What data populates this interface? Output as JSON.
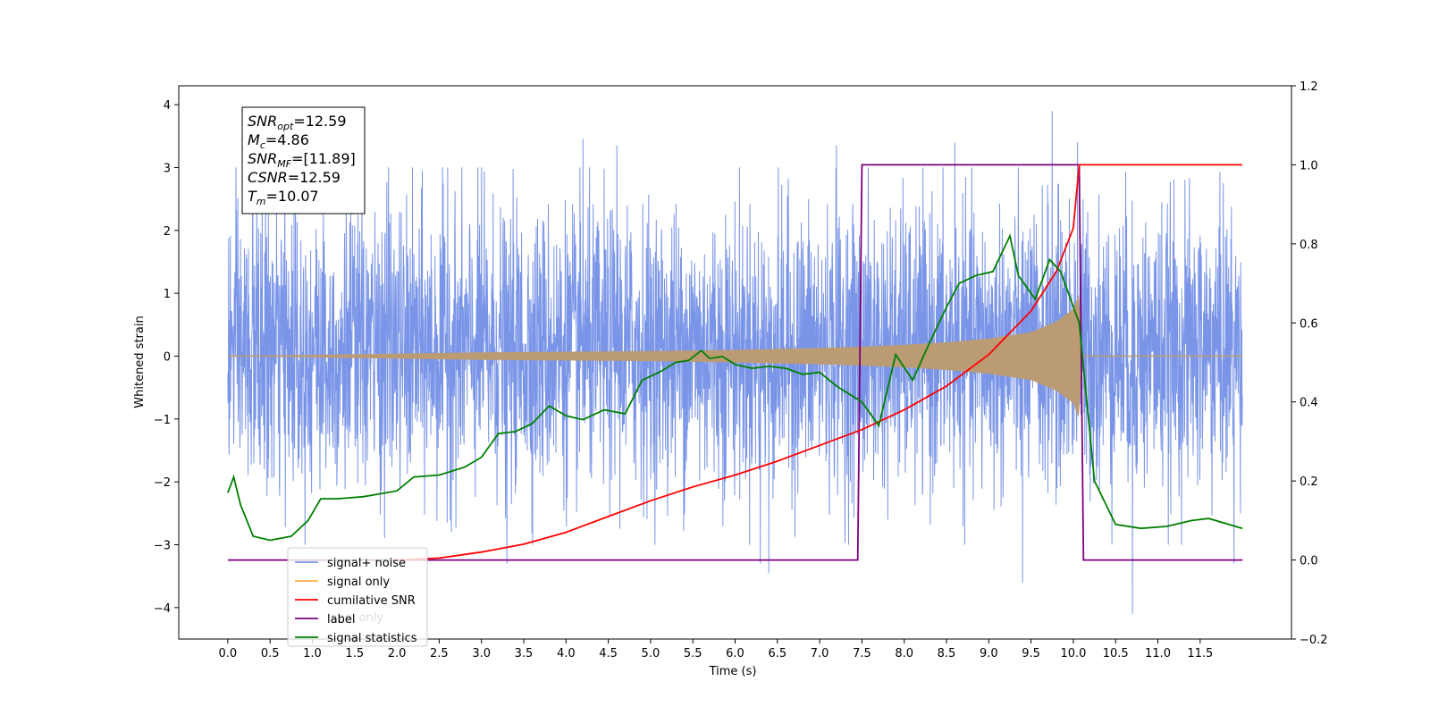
{
  "chart_data": {
    "type": "line",
    "xlabel": "Time (s)",
    "ylabel_left": "Whitened strain",
    "ylabel_right": "",
    "xlim": [
      -0.58,
      12.58
    ],
    "ylim_left": [
      -4.5,
      4.3
    ],
    "ylim_right": [
      -0.2,
      1.2
    ],
    "x_ticks": [
      "0.0",
      "0.5",
      "1.0",
      "1.5",
      "2.0",
      "2.5",
      "3.0",
      "3.5",
      "4.0",
      "4.5",
      "5.0",
      "5.5",
      "6.0",
      "6.5",
      "7.0",
      "7.5",
      "8.0",
      "8.5",
      "9.0",
      "9.5",
      "10.0",
      "10.5",
      "11.0",
      "11.5"
    ],
    "y_ticks_left": [
      "4",
      "3",
      "2",
      "1",
      "0",
      "−1",
      "−2",
      "−3",
      "−4"
    ],
    "y_ticks_right": [
      "1.2",
      "1.0",
      "0.8",
      "0.6",
      "0.4",
      "0.2",
      "0.0",
      "−0.2"
    ],
    "grid": false,
    "legend_position": "lower-left",
    "colors": {
      "signal_noise": "#7a95e8",
      "signal_only": "#ffb347",
      "signal_overlap": "#bb9b73",
      "cumulative_snr": "#ff0000",
      "label": "#7b007b",
      "signal_statistics": "#008000"
    },
    "series": [
      {
        "name": "signal+ noise",
        "axis": "left",
        "envelope_note": "dense noise trace, x 0–12 s",
        "bulk_range": [
          -1.9,
          2.1
        ],
        "x": [
          0.8,
          1.9,
          2.6,
          3.0,
          3.3,
          4.2,
          4.6,
          6.3,
          6.4,
          7.2,
          8.6,
          9.4,
          9.75,
          10.05,
          10.7,
          11.9
        ],
        "y": [
          2.9,
          3.0,
          3.0,
          3.0,
          -3.3,
          3.45,
          3.35,
          -3.3,
          -3.45,
          3.35,
          3.4,
          -3.6,
          3.9,
          3.4,
          -4.1,
          -3.3
        ]
      },
      {
        "name": "signal only",
        "axis": "left",
        "x": [
          0.0,
          1.0,
          2.0,
          3.0,
          4.0,
          5.0,
          6.0,
          7.0,
          7.5,
          8.0,
          8.5,
          9.0,
          9.5,
          9.8,
          10.0,
          10.07,
          10.1,
          12.0
        ],
        "y": [
          0.0,
          0.02,
          0.04,
          0.06,
          0.07,
          0.08,
          0.1,
          0.13,
          0.15,
          0.18,
          0.22,
          0.28,
          0.38,
          0.55,
          0.75,
          1.0,
          0.0,
          0.0
        ]
      },
      {
        "name": "cumilative SNR",
        "axis": "right",
        "x": [
          2.0,
          2.5,
          3.0,
          3.5,
          4.0,
          4.5,
          5.0,
          5.5,
          6.0,
          6.5,
          7.0,
          7.5,
          8.0,
          8.5,
          9.0,
          9.5,
          9.8,
          10.0,
          10.07,
          11.0,
          12.0
        ],
        "y": [
          0.0,
          0.005,
          0.02,
          0.04,
          0.07,
          0.11,
          0.15,
          0.185,
          0.215,
          0.25,
          0.29,
          0.33,
          0.38,
          0.44,
          0.52,
          0.63,
          0.73,
          0.84,
          1.0,
          1.0,
          1.0
        ]
      },
      {
        "name": "label",
        "axis": "right",
        "x": [
          0.0,
          7.45,
          7.5,
          10.07,
          10.12,
          12.0
        ],
        "y": [
          0.0,
          0.0,
          1.0,
          1.0,
          0.0,
          0.0
        ]
      },
      {
        "name": "signal statistics",
        "axis": "right",
        "x": [
          0.0,
          0.07,
          0.15,
          0.3,
          0.5,
          0.75,
          0.95,
          1.1,
          1.3,
          1.6,
          2.0,
          2.2,
          2.5,
          2.8,
          3.0,
          3.2,
          3.4,
          3.6,
          3.8,
          4.0,
          4.2,
          4.45,
          4.7,
          4.9,
          5.1,
          5.3,
          5.45,
          5.6,
          5.7,
          5.85,
          6.0,
          6.2,
          6.4,
          6.6,
          6.8,
          7.0,
          7.2,
          7.5,
          7.7,
          7.9,
          8.1,
          8.3,
          8.5,
          8.65,
          8.85,
          9.05,
          9.25,
          9.35,
          9.55,
          9.72,
          9.85,
          10.07,
          10.25,
          10.5,
          10.8,
          11.1,
          11.4,
          11.6,
          12.0
        ],
        "y": [
          0.17,
          0.21,
          0.14,
          0.06,
          0.05,
          0.06,
          0.1,
          0.155,
          0.155,
          0.16,
          0.175,
          0.21,
          0.215,
          0.235,
          0.26,
          0.32,
          0.325,
          0.345,
          0.39,
          0.365,
          0.355,
          0.38,
          0.37,
          0.455,
          0.475,
          0.5,
          0.505,
          0.53,
          0.51,
          0.515,
          0.495,
          0.485,
          0.49,
          0.485,
          0.47,
          0.475,
          0.44,
          0.4,
          0.34,
          0.52,
          0.455,
          0.55,
          0.64,
          0.7,
          0.72,
          0.73,
          0.82,
          0.72,
          0.66,
          0.76,
          0.73,
          0.6,
          0.2,
          0.09,
          0.08,
          0.085,
          0.1,
          0.105,
          0.08
        ]
      }
    ],
    "legend_entries": [
      "signal+ noise",
      "signal only",
      "cumilative SNR",
      "label",
      "signal statistics"
    ],
    "legend_hidden_entry": "label only",
    "annotations": [
      {
        "base": "SNR",
        "sub": "opt",
        "value": "=12.59"
      },
      {
        "base": "M",
        "sub": "c",
        "value": "=4.86"
      },
      {
        "base": "SNR",
        "sub": "MF",
        "value": "=[11.89]"
      },
      {
        "base": "CSNR",
        "sub": "",
        "value": "=12.59"
      },
      {
        "base": "T",
        "sub": "m",
        "value": "=10.07"
      }
    ]
  }
}
